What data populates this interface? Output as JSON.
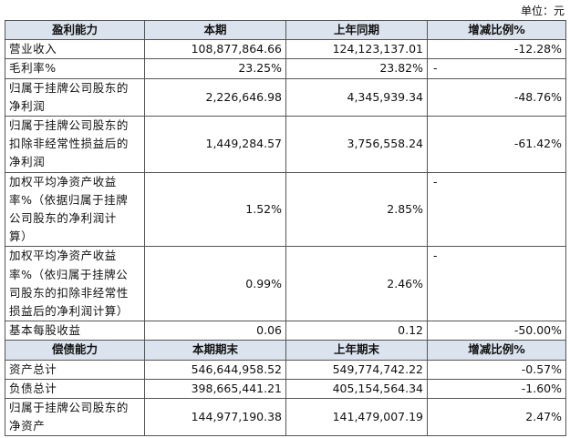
{
  "unit": "单位：元",
  "table": {
    "sections": [
      {
        "header": [
          "盈利能力",
          "本期",
          "上年同期",
          "增减比例%"
        ],
        "rows": [
          [
            [
              "营业收入"
            ],
            "108,877,864.66",
            "124,123,137.01",
            "-12.28%"
          ],
          [
            [
              "毛利率%"
            ],
            "23.25%",
            "23.82%",
            "-"
          ],
          [
            [
              "归属于挂牌公司股东的",
              "净利润"
            ],
            "2,226,646.98",
            "4,345,939.34",
            "-48.76%"
          ],
          [
            [
              "归属于挂牌公司股东的",
              "扣除非经常性损益后的",
              "净利润"
            ],
            "1,449,284.57",
            "3,756,558.24",
            "-61.42%"
          ],
          [
            [
              "加权平均净资产收益",
              "率%（依据归属于挂牌",
              "公司股东的净利润计",
              "算）"
            ],
            "1.52%",
            "2.85%",
            "-"
          ],
          [
            [
              "加权平均净资产收益",
              "率%（依归属于挂牌公",
              "司股东的扣除非经常性",
              "损益后的净利润计算）"
            ],
            "0.99%",
            "2.46%",
            "-"
          ],
          [
            [
              "基本每股收益"
            ],
            "0.06",
            "0.12",
            "-50.00%"
          ]
        ]
      },
      {
        "header": [
          "偿债能力",
          "本期期末",
          "上年期末",
          "增减比例%"
        ],
        "rows": [
          [
            [
              "资产总计"
            ],
            "546,644,958.52",
            "549,774,742.22",
            "-0.57%"
          ],
          [
            [
              "负债总计"
            ],
            "398,665,441.21",
            "405,154,564.34",
            "-1.60%"
          ],
          [
            [
              "归属于挂牌公司股东的",
              "净资产"
            ],
            "144,977,190.38",
            "141,479,007.19",
            "2.47%"
          ]
        ]
      }
    ]
  }
}
